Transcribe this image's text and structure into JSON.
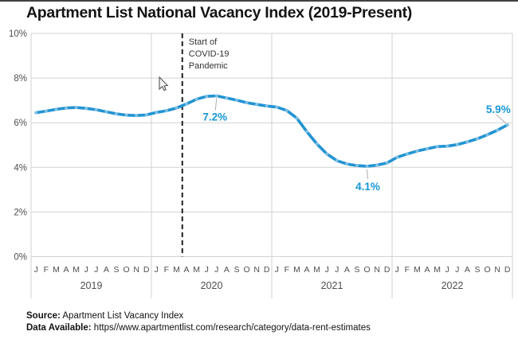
{
  "title": "Apartment List National Vacancy Index (2019-Present)",
  "chart_data": {
    "type": "line",
    "title": "Apartment List National Vacancy Index (2019-Present)",
    "series": [
      {
        "name": "National Vacancy Index (%)",
        "values": [
          6.45,
          6.52,
          6.6,
          6.66,
          6.68,
          6.64,
          6.58,
          6.49,
          6.4,
          6.34,
          6.32,
          6.35,
          6.46,
          6.54,
          6.66,
          6.84,
          7.05,
          7.18,
          7.2,
          7.11,
          7.01,
          6.9,
          6.82,
          6.75,
          6.7,
          6.55,
          6.2,
          5.6,
          5.05,
          4.6,
          4.3,
          4.15,
          4.08,
          4.05,
          4.1,
          4.2,
          4.45,
          4.6,
          4.73,
          4.83,
          4.93,
          4.95,
          5.02,
          5.14,
          5.28,
          5.46,
          5.66,
          5.9
        ]
      }
    ],
    "x_years": [
      "2019",
      "2020",
      "2021",
      "2022"
    ],
    "month_letters": [
      "J",
      "F",
      "M",
      "A",
      "M",
      "J",
      "J",
      "A",
      "S",
      "O",
      "N",
      "D"
    ],
    "y_ticks": [
      "10%",
      "8%",
      "6%",
      "4%",
      "2%",
      "0%"
    ],
    "ylim": [
      0,
      10
    ],
    "grid": true,
    "legend": "none",
    "line_color": "#2293d2",
    "marker_color": "#7fc1e6",
    "data_label_color": "#1697d6"
  },
  "annotations": {
    "covid": {
      "label_lines": [
        "Start of",
        "COVID-19",
        "Pandemic"
      ],
      "month_index": 15
    },
    "point_labels": [
      {
        "text": "7.2%",
        "month_index": 18,
        "value": 7.2
      },
      {
        "text": "4.1%",
        "month_index": 33,
        "value": 4.1
      },
      {
        "text": "5.9%",
        "month_index": 47,
        "value": 5.9
      }
    ]
  },
  "footer": {
    "source_label": "Source:",
    "source_value": " Apartment List Vacancy Index",
    "data_label": "Data Available:",
    "data_value": " https//www.apartmentlist.com/research/category/data-rent-estimates"
  },
  "colors": {
    "accent_blue": "#2293d2",
    "grid_gray": "#d2d2d2",
    "axis_text": "#4f4f4f",
    "dashed_line": "#1f1f1f"
  }
}
